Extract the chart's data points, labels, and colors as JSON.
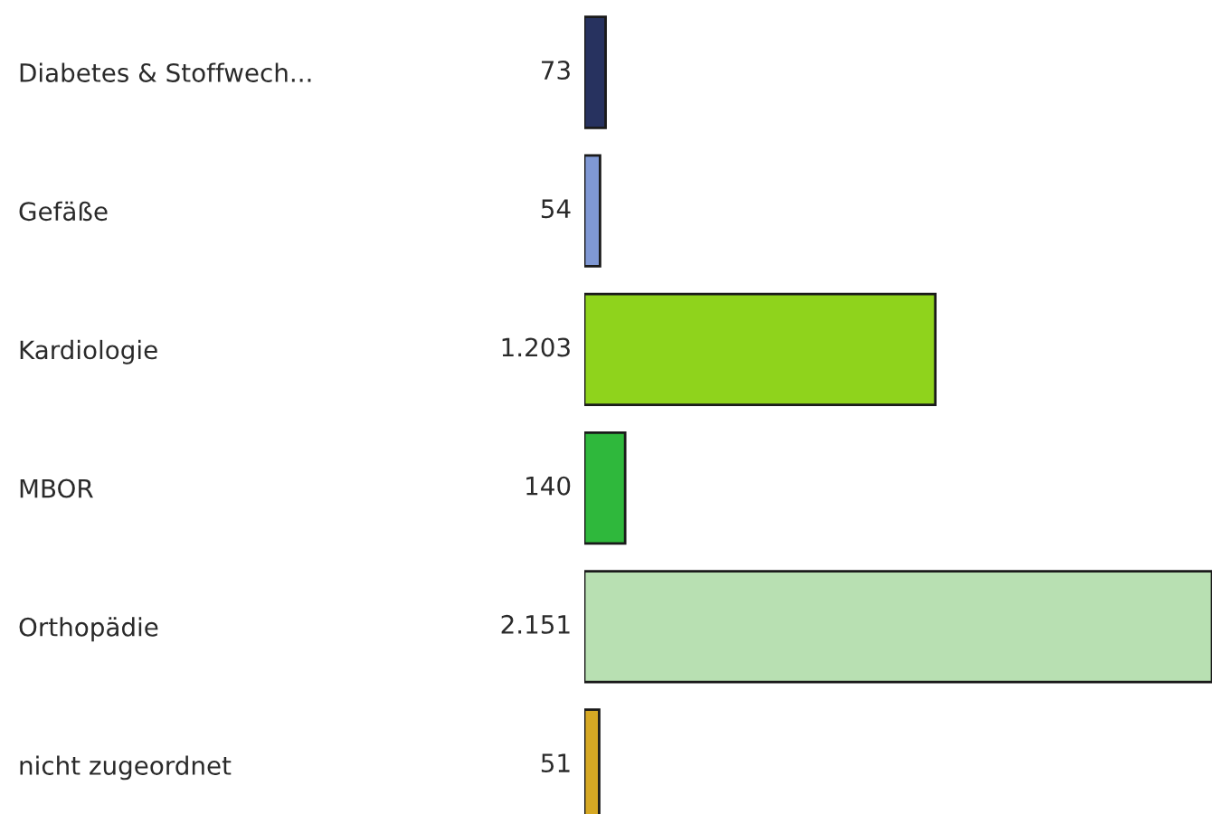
{
  "chart_data": {
    "type": "bar",
    "orientation": "horizontal",
    "categories": [
      "Diabetes & Stoffwech...",
      "Gefäße",
      "Kardiologie",
      "MBOR",
      "Orthopädie",
      "nicht zugeordnet"
    ],
    "values": [
      73,
      54,
      1203,
      140,
      2151,
      51
    ],
    "value_labels": [
      "73",
      "54",
      "1.203",
      "140",
      "2.151",
      "51"
    ],
    "colors": [
      "#27325f",
      "#7f98d4",
      "#8fd31c",
      "#2fb83c",
      "#b8e0b2",
      "#d6a824"
    ],
    "xlim": [
      0,
      2151
    ],
    "tick_labels": "y"
  }
}
